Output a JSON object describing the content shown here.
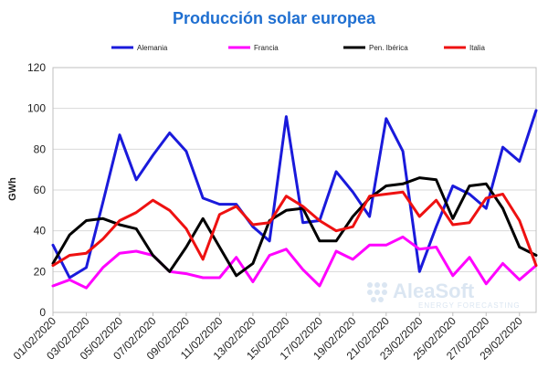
{
  "chart_data": {
    "type": "line",
    "title": "Producción solar europea",
    "ylabel": "GWh",
    "xlabel": "",
    "ylim": [
      0,
      120
    ],
    "yticks": [
      0,
      20,
      40,
      60,
      80,
      100,
      120
    ],
    "grid": true,
    "legend_placement": "top",
    "x": [
      "01/02/2020",
      "02/02/2020",
      "03/02/2020",
      "04/02/2020",
      "05/02/2020",
      "06/02/2020",
      "07/02/2020",
      "08/02/2020",
      "09/02/2020",
      "10/02/2020",
      "11/02/2020",
      "12/02/2020",
      "13/02/2020",
      "14/02/2020",
      "15/02/2020",
      "16/02/2020",
      "17/02/2020",
      "18/02/2020",
      "19/02/2020",
      "20/02/2020",
      "21/02/2020",
      "22/02/2020",
      "23/02/2020",
      "24/02/2020",
      "25/02/2020",
      "26/02/2020",
      "27/02/2020",
      "28/02/2020",
      "29/02/2020",
      "01/03/2020"
    ],
    "xtick_labels": [
      "01/02/2020",
      "03/02/2020",
      "05/02/2020",
      "07/02/2020",
      "09/02/2020",
      "11/02/2020",
      "13/02/2020",
      "15/02/2020",
      "17/02/2020",
      "19/02/2020",
      "21/02/2020",
      "23/02/2020",
      "25/02/2020",
      "27/02/2020",
      "29/02/2020"
    ],
    "series": [
      {
        "name": "Alemania",
        "color": "#1a1adb",
        "values": [
          33,
          17,
          22,
          54,
          87,
          65,
          77,
          88,
          79,
          56,
          53,
          53,
          42,
          35,
          96,
          44,
          45,
          69,
          59,
          47,
          95,
          79,
          20,
          42,
          62,
          58,
          51,
          81,
          74,
          99
        ]
      },
      {
        "name": "Francia",
        "color": "#ff00ff",
        "values": [
          13,
          16,
          12,
          22,
          29,
          30,
          28,
          20,
          19,
          17,
          17,
          27,
          15,
          28,
          31,
          21,
          13,
          30,
          26,
          33,
          33,
          37,
          31,
          32,
          18,
          27,
          14,
          24,
          16,
          23
        ]
      },
      {
        "name": "Pen. Ibérica",
        "color": "#000000",
        "values": [
          24,
          38,
          45,
          46,
          43,
          41,
          28,
          20,
          32,
          46,
          32,
          18,
          24,
          45,
          50,
          51,
          35,
          35,
          47,
          56,
          62,
          63,
          66,
          65,
          46,
          62,
          63,
          51,
          32,
          28
        ]
      },
      {
        "name": "Italia",
        "color": "#ee1111",
        "values": [
          23,
          28,
          29,
          36,
          45,
          49,
          55,
          50,
          41,
          26,
          48,
          52,
          43,
          44,
          57,
          52,
          45,
          40,
          42,
          57,
          58,
          59,
          47,
          55,
          43,
          44,
          56,
          58,
          45,
          23
        ]
      }
    ]
  },
  "watermark": {
    "brand": "AleaSoft",
    "tagline": "ENERGY FORECASTING",
    "color": "#dbe6f2"
  }
}
